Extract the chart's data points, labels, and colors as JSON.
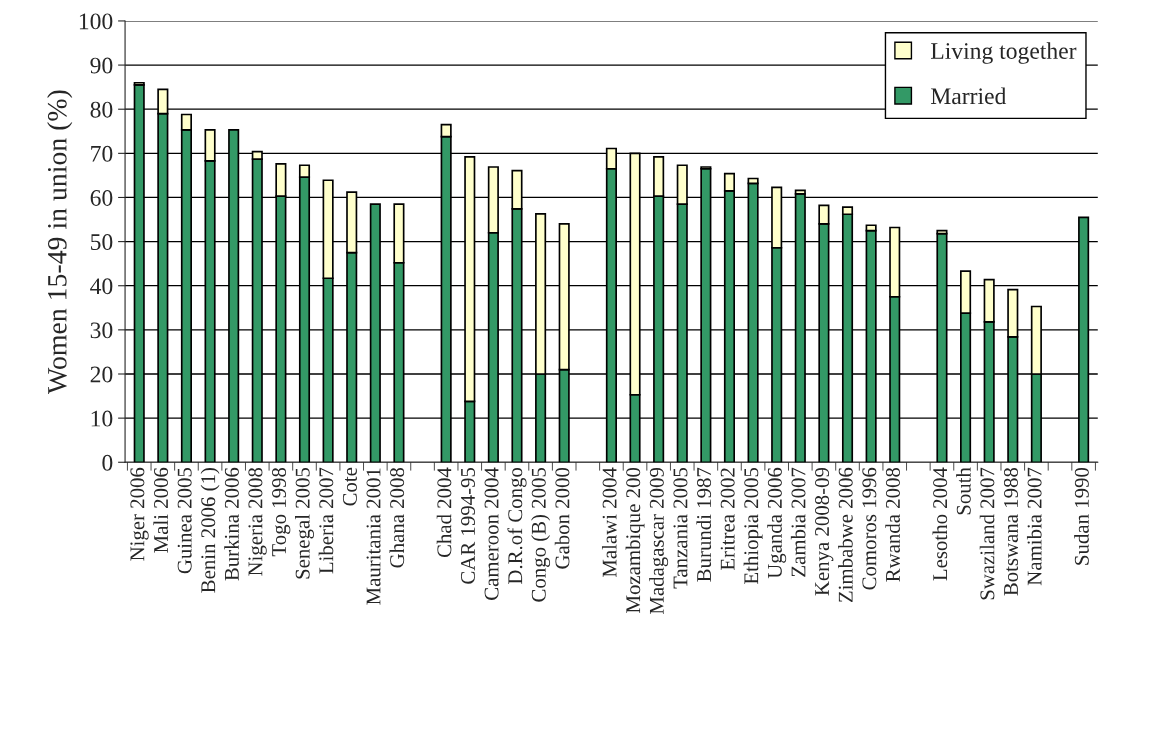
{
  "chart_data": {
    "type": "bar",
    "stacked": true,
    "ylabel": "Women 15-49 in union (%)",
    "categories": [
      "Niger 2006",
      "Mali 2006",
      "Guinea 2005",
      "Benin 2006 (1)",
      "Burkina 2006",
      "Nigeria 2008",
      "Togo 1998",
      "Senegal 2005",
      "Liberia 2007",
      "Cote",
      "Mauritania 2001",
      "Ghana 2008",
      null,
      "Chad 2004",
      "CAR 1994-95",
      "Cameroon 2004",
      "D.R.of Congo",
      "Congo (B) 2005",
      "Gabon 2000",
      null,
      "Malawi 2004",
      "Mozambique 200",
      "Madagascar 2009",
      "Tanzania 2005",
      "Burundi 1987",
      "Eritrea 2002",
      "Ethiopia 2005",
      "Uganda 2006",
      "Zambia 2007",
      "Kenya 2008-09",
      "Zimbabwe 2006",
      "Comoros 1996",
      "Rwanda 2008",
      null,
      "Lesotho 2004",
      "South",
      "Swaziland 2007",
      "Botswana 1988",
      "Namibia 2007",
      null,
      "Sudan 1990"
    ],
    "series": [
      {
        "name": "Married",
        "color": "#339966",
        "values": [
          85.5,
          79,
          75.3,
          68.3,
          75.3,
          68.7,
          60.3,
          64.6,
          41.7,
          47.5,
          58.5,
          45.2,
          null,
          73.8,
          13.8,
          52,
          57.4,
          20,
          21,
          null,
          66.5,
          15.3,
          60.3,
          58.5,
          66.5,
          61.5,
          63.2,
          48.6,
          60.8,
          54,
          56.2,
          52.5,
          37.5,
          null,
          51.8,
          33.8,
          31.8,
          28.4,
          20,
          null,
          55.5
        ]
      },
      {
        "name": "Living together",
        "color": "#ffffcc",
        "values": [
          0.5,
          5.5,
          3.5,
          7,
          0,
          1.7,
          7.3,
          2.7,
          22.2,
          13.7,
          0,
          13.3,
          null,
          2.7,
          55.4,
          14.9,
          8.7,
          36.3,
          33,
          null,
          4.6,
          54.7,
          8.9,
          8.8,
          0.4,
          3.9,
          1.1,
          13.7,
          0.8,
          4.2,
          1.6,
          1.2,
          15.7,
          null,
          0.7,
          9.5,
          9.6,
          10.7,
          15.3,
          null,
          0
        ]
      }
    ],
    "ylim": [
      0,
      100
    ],
    "yticks": [
      0,
      10,
      20,
      30,
      40,
      50,
      60,
      70,
      80,
      90,
      100
    ],
    "grid": "y",
    "legend": "top right"
  }
}
